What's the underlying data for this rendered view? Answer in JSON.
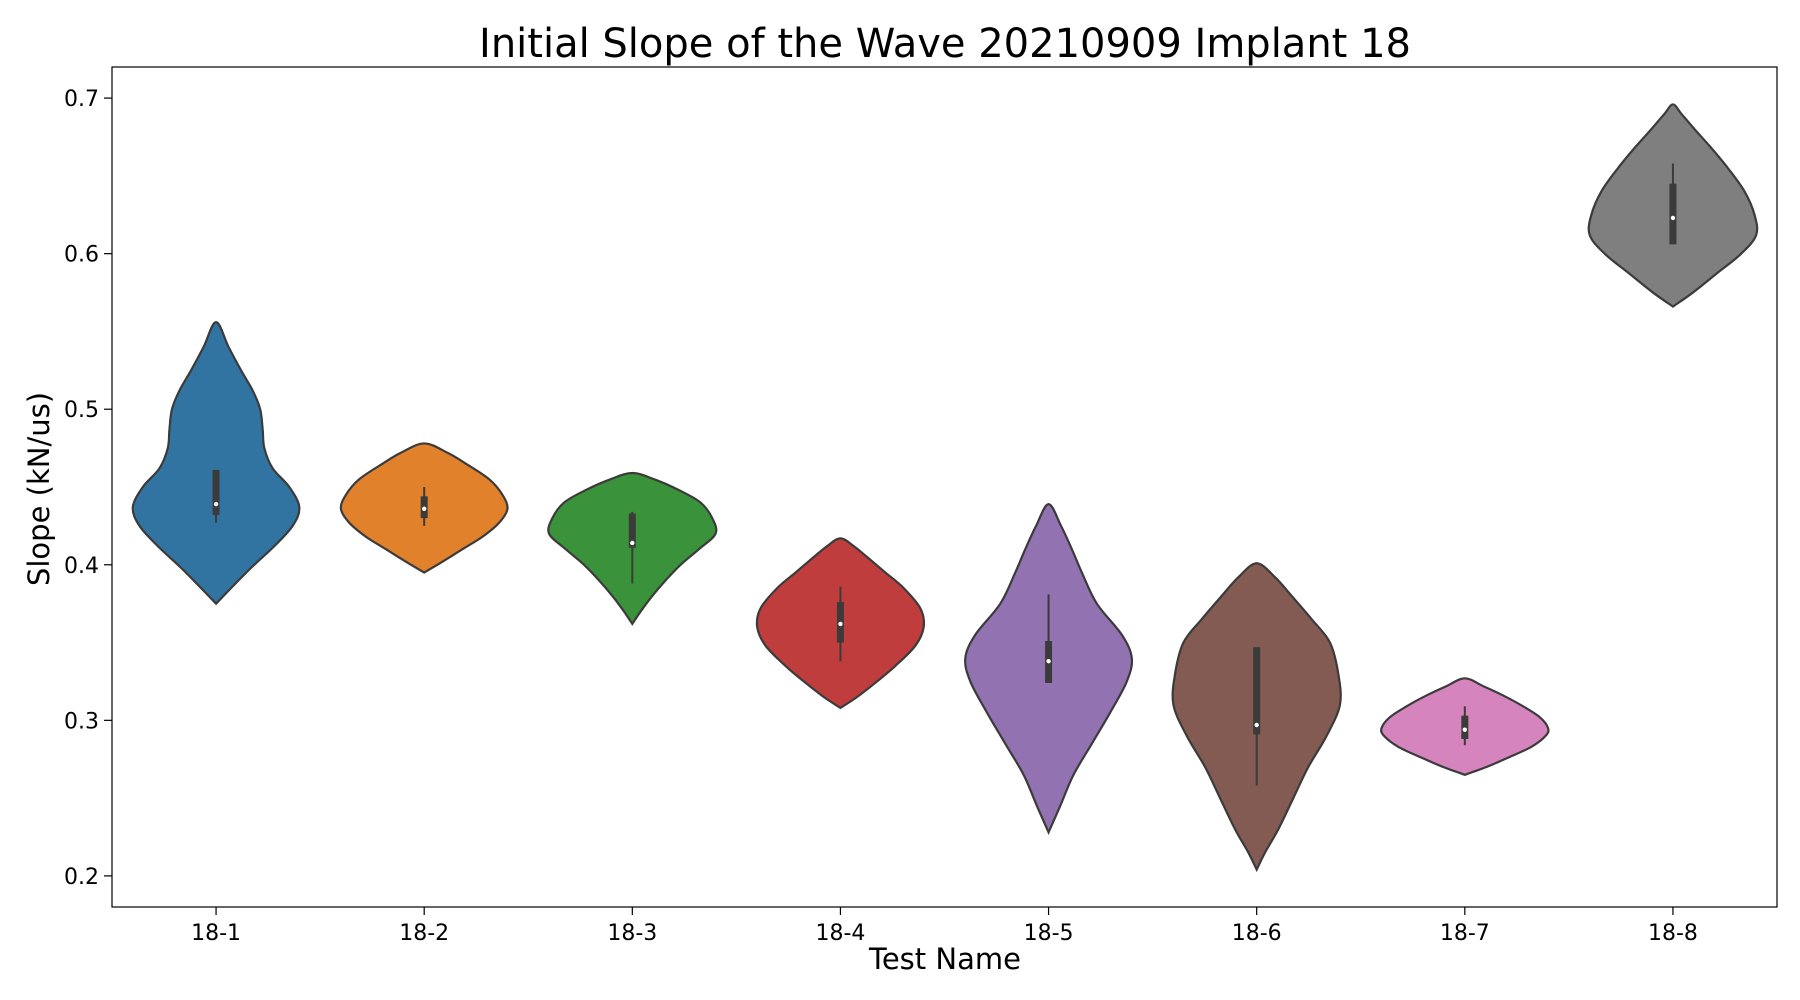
{
  "chart_data": {
    "type": "violin",
    "title": "Initial Slope of the Wave 20210909 Implant 18",
    "xlabel": "Test Name",
    "ylabel": "Slope (kN/us)",
    "ylim": [
      0.18,
      0.72
    ],
    "yticks": [
      0.2,
      0.3,
      0.4,
      0.5,
      0.6,
      0.7
    ],
    "ytick_labels": [
      "0.2",
      "0.3",
      "0.4",
      "0.5",
      "0.6",
      "0.7"
    ],
    "grid": false,
    "legend": "none",
    "categories": [
      "18-1",
      "18-2",
      "18-3",
      "18-4",
      "18-5",
      "18-6",
      "18-7",
      "18-8"
    ],
    "colors": [
      "#3274a1",
      "#e1812c",
      "#3a923a",
      "#c03d3e",
      "#9372b2",
      "#845b53",
      "#d684bd",
      "#7f7f7f"
    ],
    "violins": [
      {
        "name": "18-1",
        "min": 0.375,
        "max": 0.556,
        "whisker_low": 0.427,
        "q1": 0.432,
        "median": 0.439,
        "q3": 0.461,
        "whisker_high": 0.461,
        "profile": [
          [
            0.375,
            0.0
          ],
          [
            0.385,
            0.18
          ],
          [
            0.398,
            0.42
          ],
          [
            0.412,
            0.7
          ],
          [
            0.425,
            0.92
          ],
          [
            0.437,
            1.0
          ],
          [
            0.45,
            0.88
          ],
          [
            0.462,
            0.68
          ],
          [
            0.475,
            0.58
          ],
          [
            0.487,
            0.56
          ],
          [
            0.5,
            0.53
          ],
          [
            0.512,
            0.44
          ],
          [
            0.525,
            0.3
          ],
          [
            0.54,
            0.15
          ],
          [
            0.556,
            0.0
          ]
        ]
      },
      {
        "name": "18-2",
        "min": 0.395,
        "max": 0.478,
        "whisker_low": 0.425,
        "q1": 0.43,
        "median": 0.436,
        "q3": 0.444,
        "whisker_high": 0.45,
        "profile": [
          [
            0.395,
            0.0
          ],
          [
            0.402,
            0.22
          ],
          [
            0.41,
            0.46
          ],
          [
            0.418,
            0.7
          ],
          [
            0.427,
            0.9
          ],
          [
            0.436,
            1.0
          ],
          [
            0.445,
            0.94
          ],
          [
            0.455,
            0.78
          ],
          [
            0.465,
            0.5
          ],
          [
            0.472,
            0.28
          ],
          [
            0.478,
            0.0
          ]
        ]
      },
      {
        "name": "18-3",
        "min": 0.362,
        "max": 0.459,
        "whisker_low": 0.388,
        "q1": 0.411,
        "median": 0.414,
        "q3": 0.433,
        "whisker_high": 0.434,
        "profile": [
          [
            0.362,
            0.0
          ],
          [
            0.37,
            0.1
          ],
          [
            0.38,
            0.24
          ],
          [
            0.39,
            0.4
          ],
          [
            0.4,
            0.58
          ],
          [
            0.41,
            0.8
          ],
          [
            0.42,
            1.0
          ],
          [
            0.43,
            0.96
          ],
          [
            0.44,
            0.82
          ],
          [
            0.448,
            0.56
          ],
          [
            0.455,
            0.26
          ],
          [
            0.459,
            0.0
          ]
        ]
      },
      {
        "name": "18-4",
        "min": 0.308,
        "max": 0.417,
        "whisker_low": 0.338,
        "q1": 0.35,
        "median": 0.362,
        "q3": 0.376,
        "whisker_high": 0.386,
        "profile": [
          [
            0.308,
            0.0
          ],
          [
            0.315,
            0.2
          ],
          [
            0.325,
            0.44
          ],
          [
            0.335,
            0.66
          ],
          [
            0.348,
            0.9
          ],
          [
            0.36,
            1.0
          ],
          [
            0.372,
            0.96
          ],
          [
            0.385,
            0.76
          ],
          [
            0.395,
            0.54
          ],
          [
            0.405,
            0.32
          ],
          [
            0.412,
            0.16
          ],
          [
            0.417,
            0.0
          ]
        ]
      },
      {
        "name": "18-5",
        "min": 0.228,
        "max": 0.439,
        "whisker_low": 0.324,
        "q1": 0.324,
        "median": 0.338,
        "q3": 0.351,
        "whisker_high": 0.381,
        "profile": [
          [
            0.228,
            0.0
          ],
          [
            0.245,
            0.14
          ],
          [
            0.265,
            0.3
          ],
          [
            0.285,
            0.52
          ],
          [
            0.305,
            0.74
          ],
          [
            0.325,
            0.94
          ],
          [
            0.34,
            1.0
          ],
          [
            0.355,
            0.88
          ],
          [
            0.375,
            0.58
          ],
          [
            0.395,
            0.4
          ],
          [
            0.41,
            0.28
          ],
          [
            0.425,
            0.15
          ],
          [
            0.439,
            0.0
          ]
        ]
      },
      {
        "name": "18-6",
        "min": 0.204,
        "max": 0.401,
        "whisker_low": 0.258,
        "q1": 0.291,
        "median": 0.297,
        "q3": 0.347,
        "whisker_high": 0.347,
        "profile": [
          [
            0.204,
            0.0
          ],
          [
            0.215,
            0.1
          ],
          [
            0.23,
            0.26
          ],
          [
            0.25,
            0.44
          ],
          [
            0.27,
            0.62
          ],
          [
            0.29,
            0.84
          ],
          [
            0.31,
            1.0
          ],
          [
            0.33,
            0.98
          ],
          [
            0.35,
            0.88
          ],
          [
            0.365,
            0.66
          ],
          [
            0.38,
            0.42
          ],
          [
            0.392,
            0.22
          ],
          [
            0.401,
            0.0
          ]
        ]
      },
      {
        "name": "18-7",
        "min": 0.265,
        "max": 0.327,
        "whisker_low": 0.284,
        "q1": 0.288,
        "median": 0.294,
        "q3": 0.303,
        "whisker_high": 0.309,
        "profile": [
          [
            0.265,
            0.0
          ],
          [
            0.27,
            0.26
          ],
          [
            0.276,
            0.52
          ],
          [
            0.283,
            0.8
          ],
          [
            0.29,
            0.97
          ],
          [
            0.295,
            1.0
          ],
          [
            0.302,
            0.9
          ],
          [
            0.309,
            0.7
          ],
          [
            0.316,
            0.46
          ],
          [
            0.322,
            0.22
          ],
          [
            0.327,
            0.0
          ]
        ]
      },
      {
        "name": "18-8",
        "min": 0.566,
        "max": 0.696,
        "whisker_low": 0.606,
        "q1": 0.606,
        "median": 0.623,
        "q3": 0.645,
        "whisker_high": 0.658,
        "profile": [
          [
            0.566,
            0.0
          ],
          [
            0.575,
            0.24
          ],
          [
            0.587,
            0.52
          ],
          [
            0.6,
            0.82
          ],
          [
            0.612,
            1.0
          ],
          [
            0.625,
            0.98
          ],
          [
            0.64,
            0.86
          ],
          [
            0.655,
            0.66
          ],
          [
            0.668,
            0.46
          ],
          [
            0.68,
            0.26
          ],
          [
            0.69,
            0.1
          ],
          [
            0.696,
            0.0
          ]
        ]
      }
    ]
  }
}
